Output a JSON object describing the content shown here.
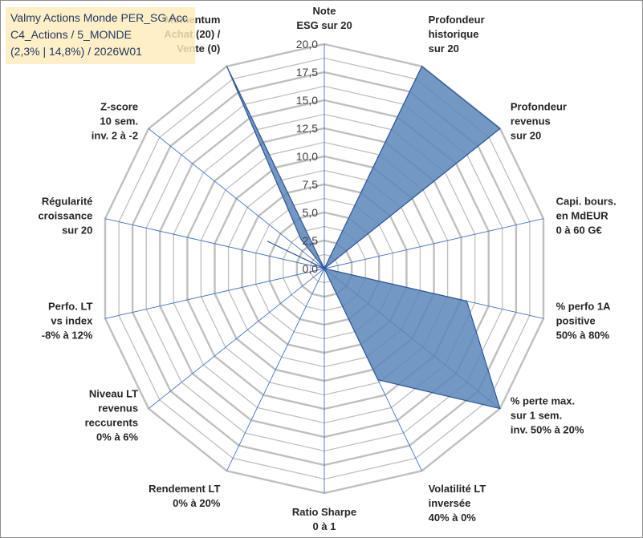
{
  "title_lines": [
    "Valmy Actions Monde PER_SG Acc",
    "C4_Actions / 5_MONDE",
    "(2,3% | 14,8%) / 2026W01"
  ],
  "colors": {
    "grid": "#bfbfbf",
    "spoke": "#4472c4",
    "fill": "#5b86b8",
    "stroke": "#2f5597"
  },
  "chart_data": {
    "type": "radar",
    "rmin": 0,
    "rmax": 20,
    "grid_step": 1.25,
    "ticks": [
      "0,0",
      "2,5",
      "5,0",
      "7,5",
      "10,0",
      "12,5",
      "15,0",
      "17,5",
      "20,0"
    ],
    "tick_values": [
      0,
      2.5,
      5,
      7.5,
      10,
      12.5,
      15,
      17.5,
      20
    ],
    "axes": [
      {
        "label": [
          "Note",
          "ESG sur 20"
        ],
        "value": 0
      },
      {
        "label": [
          "Profondeur",
          "historique",
          "sur 20"
        ],
        "value": 20
      },
      {
        "label": [
          "Profondeur",
          "revenus",
          "sur 20"
        ],
        "value": 20
      },
      {
        "label": [
          "Capi. bours.",
          "en MdEUR",
          "0 à 60 G€"
        ],
        "value": 0
      },
      {
        "label": [
          "% perfo 1A",
          "positive",
          "50% à 80%"
        ],
        "value": 13
      },
      {
        "label": [
          "% perte max.",
          "sur 1 sem.",
          "inv. 50% à 20%"
        ],
        "value": 20
      },
      {
        "label": [
          "Volatilité LT",
          "inversée",
          "40% à 0%"
        ],
        "value": 11
      },
      {
        "label": [
          "Ratio Sharpe",
          "0 à 1"
        ],
        "value": 0
      },
      {
        "label": [
          "Rendement LT",
          "0% à 20%"
        ],
        "value": 0
      },
      {
        "label": [
          "Niveau LT",
          "revenus",
          "reccurents",
          "0% à 6%"
        ],
        "value": 0
      },
      {
        "label": [
          "Perfo. LT",
          "vs index",
          "-8% à 12%"
        ],
        "value": 0
      },
      {
        "label": [
          "Régularité",
          "croissance",
          "sur 20"
        ],
        "value": 0
      },
      {
        "label": [
          "Z-score",
          "10 sem.",
          "inv. 2 à -2"
        ],
        "value": 0
      },
      {
        "label": [
          "Momentum",
          "Achat (20) /",
          "Vente (0)"
        ],
        "value": 20
      }
    ],
    "inner_points": [
      {
        "between": [
          12,
          13
        ],
        "value": 3.3
      },
      {
        "between": [
          11,
          12
        ],
        "value": 5.6
      }
    ]
  }
}
